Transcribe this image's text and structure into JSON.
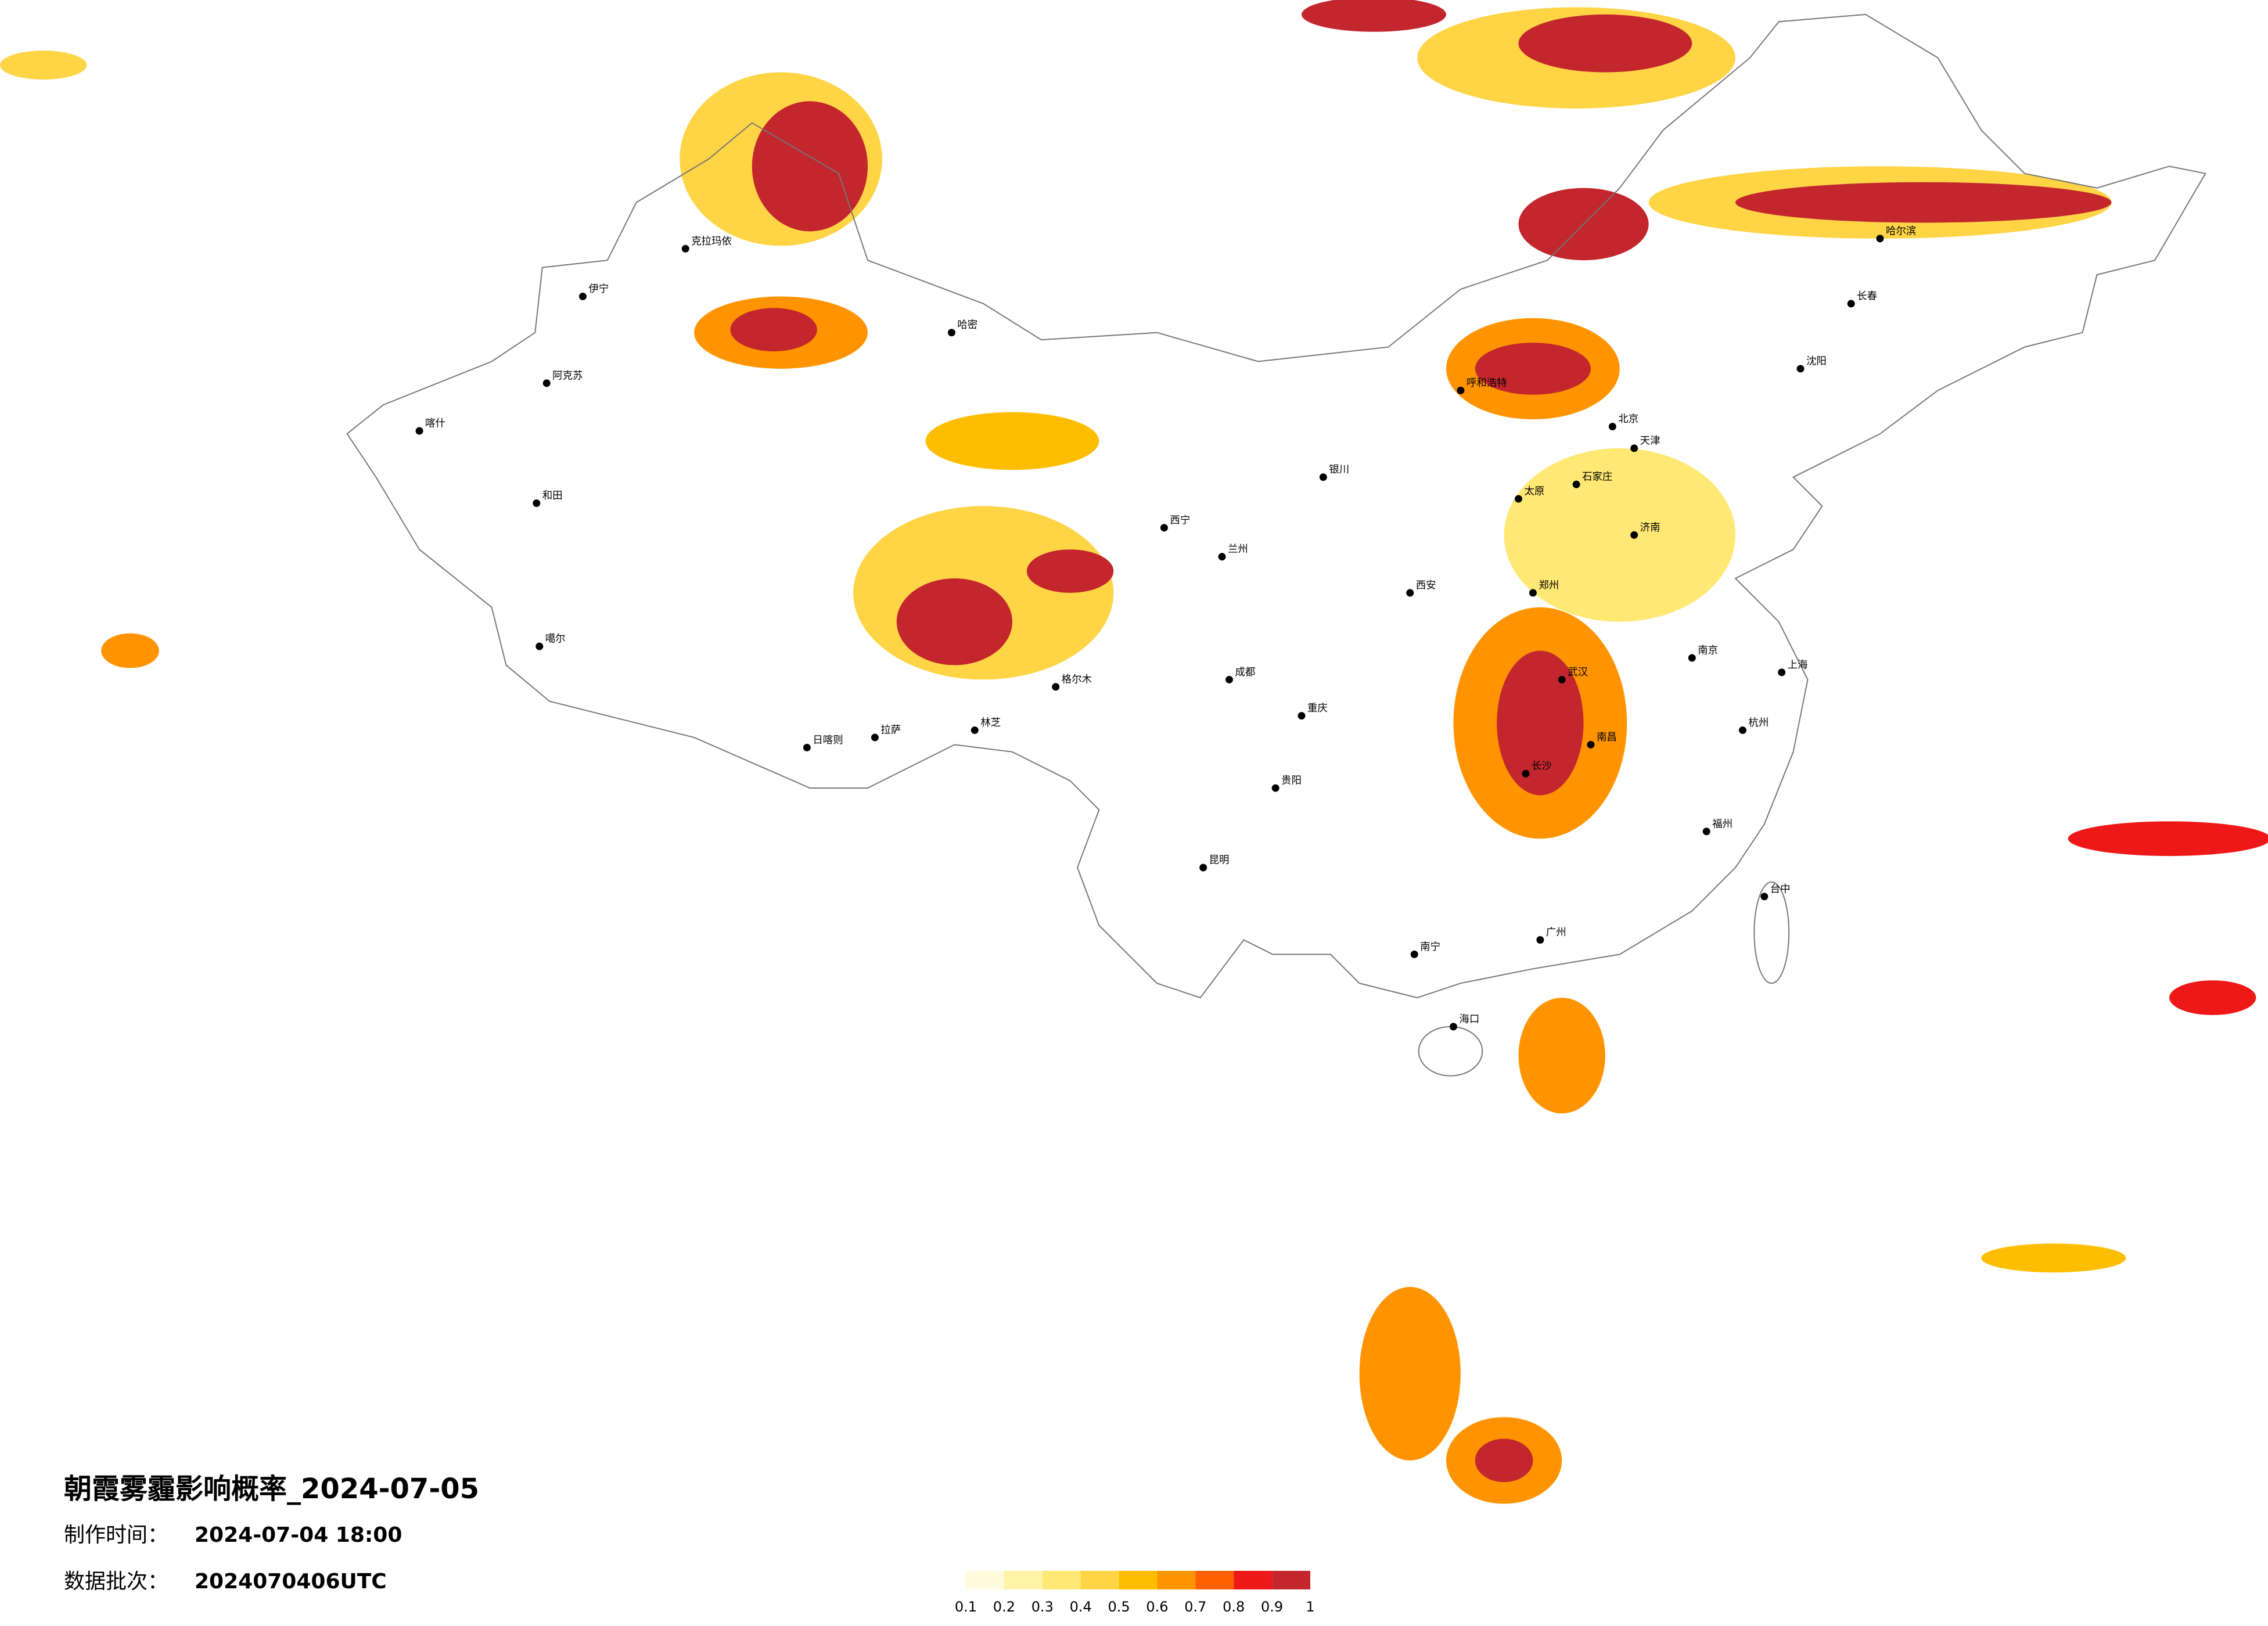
{
  "map": {
    "title": "朝霞雾霾影响概率_2024-07-05",
    "info": [
      {
        "label": "制作时间：",
        "value": "2024-07-04 18:00"
      },
      {
        "label": "数据批次：",
        "value": "2024070406UTC"
      }
    ],
    "legend": {
      "ticks": [
        0.1,
        0.2,
        0.3,
        0.4,
        0.5,
        0.6,
        0.7,
        0.8,
        0.9,
        1
      ],
      "colors": [
        "#fffbdc",
        "#fff3a8",
        "#ffe873",
        "#ffd445",
        "#ffbd00",
        "#ff9400",
        "#ff6000",
        "#ee1818",
        "#c4262e"
      ]
    },
    "cities": [
      "克拉玛依",
      "伊宁",
      "阿克苏",
      "喀什",
      "和田",
      "哈密",
      "噶尔",
      "日喀则",
      "拉萨",
      "林芝",
      "格尔木",
      "西宁",
      "兰州",
      "银川",
      "呼和浩特",
      "北京",
      "天津",
      "石家庄",
      "太原",
      "西安",
      "郑州",
      "济南",
      "南京",
      "上海",
      "杭州",
      "武汉",
      "长沙",
      "南昌",
      "福州",
      "广州",
      "南宁",
      "海口",
      "昆明",
      "贵阳",
      "成都",
      "重庆",
      "哈尔滨",
      "长春",
      "沈阳",
      "台中"
    ]
  }
}
